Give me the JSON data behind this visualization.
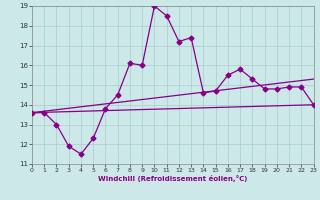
{
  "xlabel": "Windchill (Refroidissement éolien,°C)",
  "bg_color": "#cce8e8",
  "grid_color": "#aacccc",
  "line_color": "#880088",
  "xlim": [
    0,
    23
  ],
  "ylim": [
    11,
    19
  ],
  "xticks": [
    0,
    1,
    2,
    3,
    4,
    5,
    6,
    7,
    8,
    9,
    10,
    11,
    12,
    13,
    14,
    15,
    16,
    17,
    18,
    19,
    20,
    21,
    22,
    23
  ],
  "yticks": [
    11,
    12,
    13,
    14,
    15,
    16,
    17,
    18,
    19
  ],
  "line1_x": [
    0,
    1,
    2,
    3,
    4,
    5,
    6,
    7,
    8,
    9,
    10,
    11,
    12,
    13,
    14,
    15,
    16,
    17,
    18,
    19,
    20,
    21,
    22,
    23
  ],
  "line1_y": [
    13.6,
    13.6,
    13.0,
    11.9,
    11.5,
    12.3,
    13.8,
    14.5,
    16.1,
    16.0,
    19.0,
    18.5,
    17.2,
    17.4,
    14.6,
    14.7,
    15.5,
    15.8,
    15.3,
    14.8,
    14.8,
    14.9,
    14.9,
    14.0
  ],
  "line2_x": [
    0,
    23
  ],
  "line2_y": [
    13.6,
    15.3
  ],
  "line3_x": [
    0,
    23
  ],
  "line3_y": [
    13.6,
    14.0
  ],
  "marker": "D",
  "markersize": 2.5,
  "linewidth": 0.9
}
